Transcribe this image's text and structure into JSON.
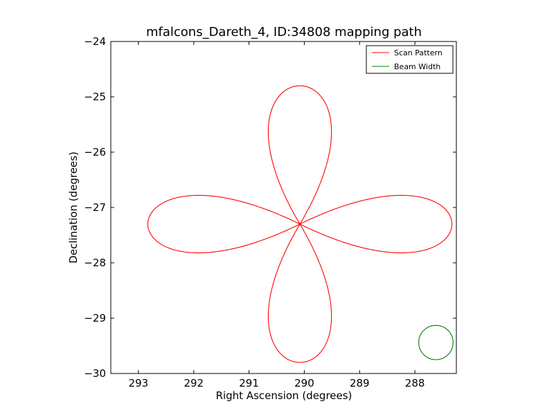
{
  "chart_data": {
    "type": "line",
    "title": "mfalcons_Dareth_4, ID:34808 mapping path",
    "xlabel": "Right Ascension (degrees)",
    "ylabel": "Declination (degrees)",
    "xlim": [
      293.5,
      287.25
    ],
    "ylim": [
      -30,
      -24
    ],
    "x_inverted": true,
    "xticks": [
      {
        "value": 293,
        "label": "293"
      },
      {
        "value": 292,
        "label": "292"
      },
      {
        "value": 291,
        "label": "291"
      },
      {
        "value": 290,
        "label": "290"
      },
      {
        "value": 289,
        "label": "289"
      },
      {
        "value": 288,
        "label": "288"
      }
    ],
    "yticks": [
      {
        "value": -24,
        "label": "−24"
      },
      {
        "value": -25,
        "label": "−25"
      },
      {
        "value": -26,
        "label": "−26"
      },
      {
        "value": -27,
        "label": "−27"
      },
      {
        "value": -28,
        "label": "−28"
      },
      {
        "value": -29,
        "label": "−29"
      },
      {
        "value": -30,
        "label": "−30"
      }
    ],
    "grid": false,
    "legend_position": "top-right",
    "series": [
      {
        "name": "Scan Pattern",
        "color": "#ff0000",
        "pattern": "four-petal rosette",
        "center": [
          290.08,
          -27.3
        ],
        "petal_length": 2.5,
        "petal_width": 1.5,
        "x_scale": 1.1,
        "tips": [
          [
            290.08,
            -24.8
          ],
          [
            287.25,
            -27.3
          ],
          [
            290.08,
            -29.8
          ],
          [
            292.92,
            -27.3
          ]
        ]
      },
      {
        "name": "Beam Width",
        "color": "#008000",
        "center": [
          287.62,
          -29.44
        ],
        "radius": 0.31
      }
    ]
  }
}
